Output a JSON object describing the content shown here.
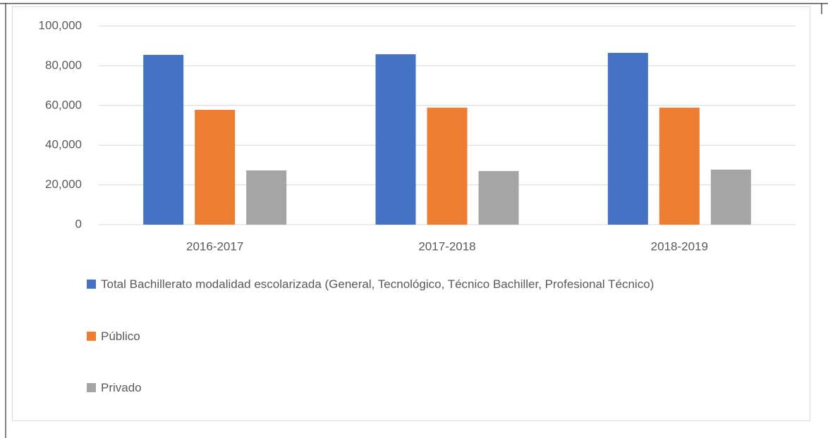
{
  "chart_data": {
    "type": "bar",
    "categories": [
      "2016-2017",
      "2017-2018",
      "2018-2019"
    ],
    "series": [
      {
        "name": "Total Bachillerato modalidad escolarizada (General, Tecnológico, Técnico Bachiller, Profesional Técnico)",
        "color": "#4472c4",
        "values": [
          85500,
          85800,
          86500
        ]
      },
      {
        "name": "Público",
        "color": "#ed7d31",
        "values": [
          57800,
          58900,
          58900
        ]
      },
      {
        "name": "Privado",
        "color": "#a5a5a5",
        "values": [
          27300,
          27000,
          27700
        ]
      }
    ],
    "ylim": [
      0,
      100000
    ],
    "yticks": [
      0,
      {
        "value": 20000,
        "label": "20,000"
      },
      {
        "value": 40000,
        "label": "40,000"
      },
      {
        "value": 60000,
        "label": "60,000"
      },
      {
        "value": 80000,
        "label": "80,000"
      },
      {
        "value": 100000,
        "label": "100,000"
      }
    ],
    "grid": true,
    "legend": "bottom"
  }
}
